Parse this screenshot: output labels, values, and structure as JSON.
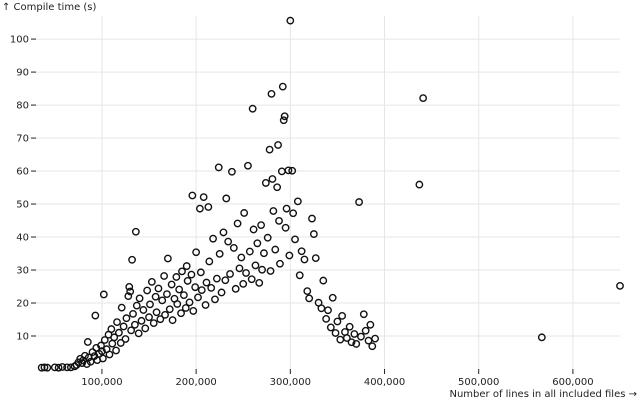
{
  "chart_data": {
    "type": "scatter",
    "title": "",
    "xlabel": "Number of lines in all included files →",
    "ylabel": "↑ Compile time (s)",
    "xlim": [
      30000,
      650000
    ],
    "ylim": [
      0,
      107
    ],
    "x_ticks": [
      100000,
      200000,
      300000,
      400000,
      500000,
      600000
    ],
    "x_tick_labels": [
      "100,000",
      "200,000",
      "300,000",
      "400,000",
      "500,000",
      "600,000"
    ],
    "y_ticks": [
      10,
      20,
      30,
      40,
      50,
      60,
      70,
      80,
      90,
      100
    ],
    "y_tick_labels": [
      "10",
      "20",
      "30",
      "40",
      "50",
      "60",
      "70",
      "80",
      "90",
      "100"
    ],
    "grid": true,
    "legend": "none",
    "marker_color": "#111111",
    "points": [
      [
        36000,
        0.4
      ],
      [
        39000,
        0.5
      ],
      [
        42000,
        0.4
      ],
      [
        50000,
        0.5
      ],
      [
        54000,
        0.4
      ],
      [
        58000,
        0.6
      ],
      [
        63000,
        0.5
      ],
      [
        67000,
        0.5
      ],
      [
        71000,
        0.8
      ],
      [
        73000,
        1.2
      ],
      [
        75000,
        2.0
      ],
      [
        77000,
        3.1
      ],
      [
        79000,
        1.8
      ],
      [
        80000,
        2.6
      ],
      [
        82000,
        4.0
      ],
      [
        84000,
        1.5
      ],
      [
        85000,
        8.2
      ],
      [
        86000,
        3.5
      ],
      [
        88000,
        2.2
      ],
      [
        90000,
        5.1
      ],
      [
        92000,
        3.9
      ],
      [
        93000,
        16.2
      ],
      [
        94000,
        6.4
      ],
      [
        95000,
        2.7
      ],
      [
        97000,
        4.6
      ],
      [
        99000,
        7.1
      ],
      [
        100000,
        5.4
      ],
      [
        101000,
        3.2
      ],
      [
        102000,
        22.6
      ],
      [
        103000,
        8.8
      ],
      [
        105000,
        6.0
      ],
      [
        107000,
        10.4
      ],
      [
        108000,
        4.4
      ],
      [
        110000,
        12.1
      ],
      [
        111000,
        7.7
      ],
      [
        113000,
        9.6
      ],
      [
        115000,
        5.6
      ],
      [
        116000,
        14.2
      ],
      [
        118000,
        11.0
      ],
      [
        120000,
        7.9
      ],
      [
        121000,
        18.6
      ],
      [
        123000,
        12.9
      ],
      [
        125000,
        9.1
      ],
      [
        126000,
        15.4
      ],
      [
        128000,
        22.1
      ],
      [
        129000,
        24.9
      ],
      [
        130000,
        23.5
      ],
      [
        131000,
        11.7
      ],
      [
        132000,
        33.1
      ],
      [
        133000,
        16.7
      ],
      [
        135000,
        13.4
      ],
      [
        136000,
        41.6
      ],
      [
        137000,
        19.2
      ],
      [
        139000,
        10.8
      ],
      [
        140000,
        21.4
      ],
      [
        142000,
        14.6
      ],
      [
        144000,
        17.9
      ],
      [
        146000,
        12.3
      ],
      [
        148000,
        23.8
      ],
      [
        150000,
        15.7
      ],
      [
        151000,
        19.6
      ],
      [
        153000,
        26.4
      ],
      [
        155000,
        13.9
      ],
      [
        157000,
        21.9
      ],
      [
        158000,
        17.2
      ],
      [
        160000,
        24.4
      ],
      [
        162000,
        15.1
      ],
      [
        164000,
        20.8
      ],
      [
        166000,
        28.2
      ],
      [
        167000,
        16.4
      ],
      [
        169000,
        22.7
      ],
      [
        170000,
        33.5
      ],
      [
        172000,
        18.1
      ],
      [
        174000,
        25.6
      ],
      [
        175000,
        14.8
      ],
      [
        177000,
        21.3
      ],
      [
        179000,
        27.9
      ],
      [
        180000,
        19.7
      ],
      [
        182000,
        24.1
      ],
      [
        184000,
        16.9
      ],
      [
        185000,
        29.6
      ],
      [
        187000,
        22.4
      ],
      [
        189000,
        18.5
      ],
      [
        190000,
        31.2
      ],
      [
        191000,
        26.7
      ],
      [
        193000,
        20.2
      ],
      [
        195000,
        28.6
      ],
      [
        196000,
        52.6
      ],
      [
        197000,
        17.6
      ],
      [
        199000,
        24.8
      ],
      [
        200000,
        35.4
      ],
      [
        202000,
        21.7
      ],
      [
        204000,
        48.6
      ],
      [
        205000,
        29.3
      ],
      [
        206000,
        23.9
      ],
      [
        208000,
        52.1
      ],
      [
        210000,
        19.4
      ],
      [
        211000,
        26.2
      ],
      [
        213000,
        49.1
      ],
      [
        214000,
        32.6
      ],
      [
        216000,
        24.6
      ],
      [
        218000,
        39.5
      ],
      [
        220000,
        21.1
      ],
      [
        222000,
        27.4
      ],
      [
        224000,
        61.1
      ],
      [
        225000,
        34.9
      ],
      [
        227000,
        23.2
      ],
      [
        229000,
        41.4
      ],
      [
        231000,
        26.9
      ],
      [
        232000,
        51.7
      ],
      [
        234000,
        38.6
      ],
      [
        236000,
        28.8
      ],
      [
        238000,
        59.8
      ],
      [
        240000,
        36.7
      ],
      [
        242000,
        24.3
      ],
      [
        244000,
        44.1
      ],
      [
        246000,
        30.5
      ],
      [
        248000,
        33.8
      ],
      [
        250000,
        25.8
      ],
      [
        251000,
        47.3
      ],
      [
        253000,
        29.1
      ],
      [
        255000,
        61.6
      ],
      [
        257000,
        35.6
      ],
      [
        259000,
        27.2
      ],
      [
        260000,
        78.9
      ],
      [
        261000,
        42.3
      ],
      [
        263000,
        31.4
      ],
      [
        265000,
        38.1
      ],
      [
        267000,
        26.1
      ],
      [
        269000,
        43.6
      ],
      [
        270000,
        30.1
      ],
      [
        272000,
        35.1
      ],
      [
        274000,
        56.4
      ],
      [
        276000,
        39.8
      ],
      [
        278000,
        66.5
      ],
      [
        279000,
        29.7
      ],
      [
        280000,
        83.4
      ],
      [
        281000,
        57.6
      ],
      [
        282000,
        47.9
      ],
      [
        284000,
        36.2
      ],
      [
        286000,
        55.1
      ],
      [
        287000,
        67.9
      ],
      [
        288000,
        44.9
      ],
      [
        289000,
        31.9
      ],
      [
        291000,
        59.9
      ],
      [
        292000,
        85.6
      ],
      [
        293000,
        75.4
      ],
      [
        294000,
        76.6
      ],
      [
        295000,
        42.8
      ],
      [
        296000,
        48.6
      ],
      [
        298000,
        60.2
      ],
      [
        299000,
        34.4
      ],
      [
        300000,
        105.6
      ],
      [
        302000,
        60.1
      ],
      [
        303000,
        47.2
      ],
      [
        305000,
        39.3
      ],
      [
        308000,
        50.8
      ],
      [
        310000,
        28.4
      ],
      [
        312000,
        35.7
      ],
      [
        315000,
        33.2
      ],
      [
        318000,
        23.6
      ],
      [
        320000,
        21.4
      ],
      [
        323000,
        45.6
      ],
      [
        325000,
        40.9
      ],
      [
        327000,
        33.6
      ],
      [
        330000,
        20.1
      ],
      [
        333000,
        18.4
      ],
      [
        335000,
        26.8
      ],
      [
        338000,
        15.2
      ],
      [
        340000,
        17.8
      ],
      [
        343000,
        12.6
      ],
      [
        345000,
        21.6
      ],
      [
        348000,
        10.9
      ],
      [
        350000,
        14.4
      ],
      [
        353000,
        8.9
      ],
      [
        355000,
        16.1
      ],
      [
        358000,
        11.2
      ],
      [
        360000,
        9.4
      ],
      [
        363000,
        12.8
      ],
      [
        365000,
        8.1
      ],
      [
        368000,
        10.6
      ],
      [
        370000,
        7.6
      ],
      [
        373000,
        50.6
      ],
      [
        375000,
        9.8
      ],
      [
        378000,
        16.6
      ],
      [
        380000,
        11.6
      ],
      [
        383000,
        8.6
      ],
      [
        385000,
        13.4
      ],
      [
        387000,
        6.9
      ],
      [
        390000,
        9.2
      ],
      [
        441000,
        82.1
      ],
      [
        437000,
        55.9
      ],
      [
        567000,
        9.6
      ],
      [
        650000,
        25.2
      ]
    ]
  }
}
